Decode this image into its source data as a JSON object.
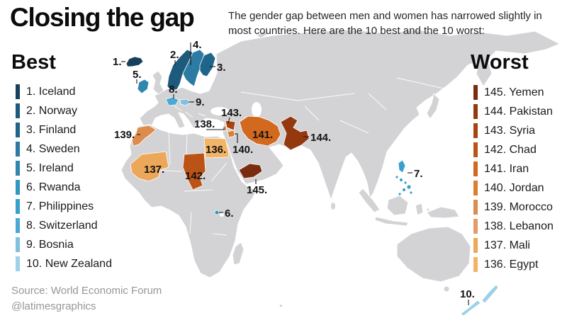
{
  "title": "Closing the gap",
  "subtitle": "The gender gap between men and women has narrowed slightly in most countries. Here are the 10 best and the 10 worst:",
  "source": {
    "line1": "Source: World Economic Forum",
    "line2": "@latimesgraphics"
  },
  "best": {
    "heading": "Best",
    "items": [
      {
        "rank": "1.",
        "name": "Iceland",
        "key": "iceland",
        "color": "#16405b"
      },
      {
        "rank": "2.",
        "name": "Norway",
        "key": "norway",
        "color": "#1d5a7c"
      },
      {
        "rank": "3.",
        "name": "Finland",
        "key": "finland",
        "color": "#1f6489"
      },
      {
        "rank": "4.",
        "name": "Sweden",
        "key": "sweden",
        "color": "#2b7ba2"
      },
      {
        "rank": "5.",
        "name": "Ireland",
        "key": "ireland",
        "color": "#2f86ae"
      },
      {
        "rank": "6.",
        "name": "Rwanda",
        "key": "rwanda",
        "color": "#2f97c4"
      },
      {
        "rank": "7.",
        "name": "Philippines",
        "key": "philippines",
        "color": "#38a0cc"
      },
      {
        "rank": "8.",
        "name": "Switzerland",
        "key": "switzerland",
        "color": "#4aa8d2"
      },
      {
        "rank": "9.",
        "name": "Bosnia",
        "key": "bosnia",
        "color": "#7fc1e0"
      },
      {
        "rank": "10.",
        "name": "New Zealand",
        "key": "new-zealand",
        "color": "#9bd1e9"
      }
    ]
  },
  "worst": {
    "heading": "Worst",
    "items": [
      {
        "rank": "145.",
        "name": "Yemen",
        "key": "yemen",
        "color": "#7a2c10"
      },
      {
        "rank": "144.",
        "name": "Pakistan",
        "key": "pakistan",
        "color": "#94390f"
      },
      {
        "rank": "143.",
        "name": "Syria",
        "key": "syria",
        "color": "#a84312"
      },
      {
        "rank": "142.",
        "name": "Chad",
        "key": "chad",
        "color": "#bc5316"
      },
      {
        "rank": "141.",
        "name": "Iran",
        "key": "iran",
        "color": "#d2691e"
      },
      {
        "rank": "140.",
        "name": "Jordan",
        "key": "jordan",
        "color": "#db7e30"
      },
      {
        "rank": "139.",
        "name": "Morocco",
        "key": "morocco",
        "color": "#de8c4d"
      },
      {
        "rank": "138.",
        "name": "Lebanon",
        "key": "lebanon",
        "color": "#e39b69"
      },
      {
        "rank": "137.",
        "name": "Mali",
        "key": "mali",
        "color": "#eda75a"
      },
      {
        "rank": "136.",
        "name": "Egypt",
        "key": "egypt",
        "color": "#f3b468"
      }
    ]
  },
  "map": {
    "labels": {
      "iceland": "1.",
      "norway": "2.",
      "finland": "3.",
      "sweden": "4.",
      "ireland": "5.",
      "rwanda": "6.",
      "philippines": "7.",
      "switzerland": "8.",
      "bosnia": "9.",
      "new-zealand": "10.",
      "egypt": "136.",
      "mali": "137.",
      "lebanon": "138.",
      "morocco": "139.",
      "jordan": "140.",
      "iran": "141.",
      "chad": "142.",
      "syria": "143.",
      "pakistan": "144.",
      "yemen": "145."
    }
  },
  "colors": {
    "land": "#d3d3d5",
    "ocean": "#ffffff",
    "label": "#121212"
  }
}
